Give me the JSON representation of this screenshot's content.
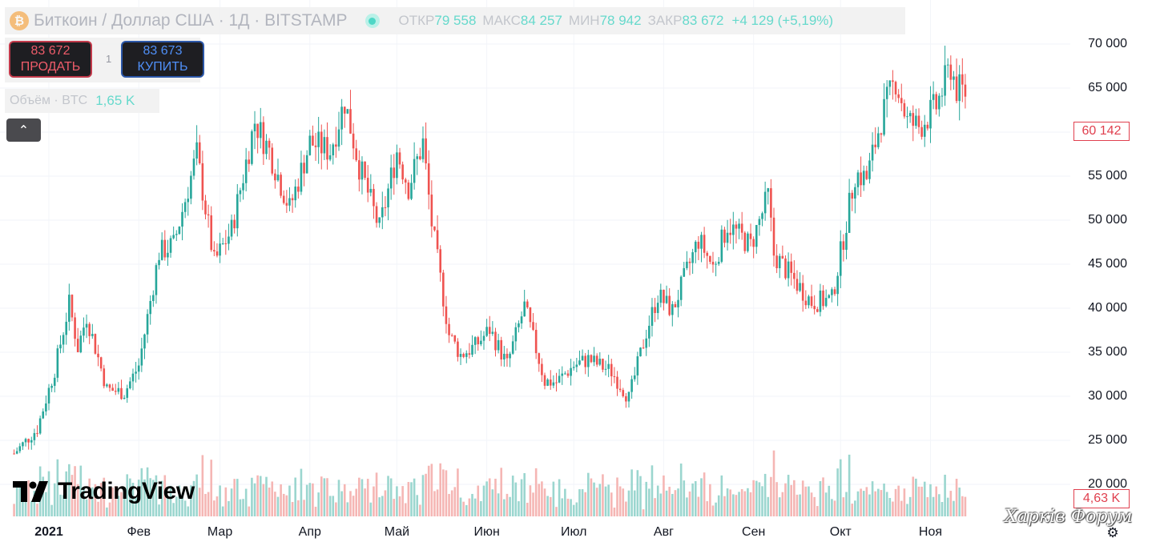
{
  "header": {
    "coin_icon": "bitcoin-icon",
    "coin_glyph": "₿",
    "symbol_title": "Биткоин / Доллар США · 1Д · BITSTAMP",
    "open_key": "ОТКР",
    "open_val": "79 558",
    "high_key": "МАКС",
    "high_val": "84 257",
    "low_key": "МИН",
    "low_val": "78 942",
    "close_key": "ЗАКР",
    "close_val": "83 672",
    "change": "+4 129 (+5,19%)"
  },
  "trade": {
    "sell_price": "83 672",
    "sell_label": "ПРОДАТЬ",
    "spread": "1",
    "buy_price": "83 673",
    "buy_label": "КУПИТЬ"
  },
  "volume_legend": {
    "label": "Объём · BTC",
    "value": "1,65 K"
  },
  "collapse_icon": "chevron-up-icon",
  "collapse_glyph": "⌃",
  "price_tag": "60 142",
  "volume_tag": "4,63 K",
  "watermark": {
    "brand": "TradingView",
    "forum": "Харків Форум"
  },
  "colors": {
    "up": "#26a69a",
    "down": "#ef5350",
    "up_volume": "#9bd6cf",
    "down_volume": "#f5b6b4",
    "accent_tag": "#e0404f"
  },
  "chart_data": {
    "type": "candlestick",
    "title": "Биткоин / Доллар США · 1Д · BITSTAMP",
    "ylim": [
      20000,
      70000
    ],
    "y_ticks": [
      {
        "value": 70000,
        "label": "70 000"
      },
      {
        "value": 65000,
        "label": "65 000"
      },
      {
        "value": 60000,
        "label": "60 000"
      },
      {
        "value": 55000,
        "label": "55 000"
      },
      {
        "value": 50000,
        "label": "50 000"
      },
      {
        "value": 45000,
        "label": "45 000"
      },
      {
        "value": 40000,
        "label": "40 000"
      },
      {
        "value": 35000,
        "label": "35 000"
      },
      {
        "value": 30000,
        "label": "30 000"
      },
      {
        "value": 25000,
        "label": "25 000"
      },
      {
        "value": 20000,
        "label": "20 000"
      }
    ],
    "x_ticks": [
      {
        "date": "2021-01-01",
        "label": "2021",
        "bold": true
      },
      {
        "date": "2021-02-01",
        "label": "Фев"
      },
      {
        "date": "2021-03-01",
        "label": "Мар"
      },
      {
        "date": "2021-04-01",
        "label": "Апр"
      },
      {
        "date": "2021-05-01",
        "label": "Май"
      },
      {
        "date": "2021-06-01",
        "label": "Июн"
      },
      {
        "date": "2021-07-01",
        "label": "Июл"
      },
      {
        "date": "2021-08-01",
        "label": "Авг"
      },
      {
        "date": "2021-09-01",
        "label": "Сен"
      },
      {
        "date": "2021-10-01",
        "label": "Окт"
      },
      {
        "date": "2021-11-01",
        "label": "Ноя"
      }
    ],
    "close_path": [
      [
        "2020-12-20",
        23500
      ],
      [
        "2020-12-28",
        26300
      ],
      [
        "2021-01-03",
        33000
      ],
      [
        "2021-01-08",
        40500
      ],
      [
        "2021-01-11",
        35500
      ],
      [
        "2021-01-14",
        39100
      ],
      [
        "2021-01-21",
        30800
      ],
      [
        "2021-01-27",
        30400
      ],
      [
        "2021-02-01",
        33500
      ],
      [
        "2021-02-08",
        46300
      ],
      [
        "2021-02-13",
        47200
      ],
      [
        "2021-02-21",
        57500
      ],
      [
        "2021-02-27",
        45200
      ],
      [
        "2021-03-05",
        48900
      ],
      [
        "2021-03-13",
        61200
      ],
      [
        "2021-03-18",
        57900
      ],
      [
        "2021-03-25",
        51300
      ],
      [
        "2021-04-01",
        58800
      ],
      [
        "2021-04-08",
        57900
      ],
      [
        "2021-04-13",
        63500
      ],
      [
        "2021-04-18",
        56200
      ],
      [
        "2021-04-25",
        49000
      ],
      [
        "2021-05-01",
        57800
      ],
      [
        "2021-05-05",
        53800
      ],
      [
        "2021-05-10",
        58800
      ],
      [
        "2021-05-13",
        49600
      ],
      [
        "2021-05-19",
        37000
      ],
      [
        "2021-05-23",
        34700
      ],
      [
        "2021-05-28",
        35700
      ],
      [
        "2021-06-02",
        37600
      ],
      [
        "2021-06-08",
        33600
      ],
      [
        "2021-06-14",
        40200
      ],
      [
        "2021-06-21",
        31700
      ],
      [
        "2021-06-25",
        31600
      ],
      [
        "2021-07-01",
        33500
      ],
      [
        "2021-07-06",
        34200
      ],
      [
        "2021-07-14",
        32800
      ],
      [
        "2021-07-20",
        29800
      ],
      [
        "2021-07-26",
        37300
      ],
      [
        "2021-07-30",
        41500
      ],
      [
        "2021-08-04",
        39700
      ],
      [
        "2021-08-13",
        47800
      ],
      [
        "2021-08-18",
        44700
      ],
      [
        "2021-08-23",
        49500
      ],
      [
        "2021-08-31",
        47100
      ],
      [
        "2021-09-06",
        52700
      ],
      [
        "2021-09-08",
        46100
      ],
      [
        "2021-09-21",
        40700
      ],
      [
        "2021-09-28",
        41000
      ],
      [
        "2021-10-02",
        48000
      ],
      [
        "2021-10-06",
        55300
      ],
      [
        "2021-10-10",
        54700
      ],
      [
        "2021-10-15",
        61500
      ],
      [
        "2021-10-20",
        66000
      ],
      [
        "2021-10-24",
        61200
      ],
      [
        "2021-10-28",
        60600
      ],
      [
        "2021-11-03",
        62900
      ],
      [
        "2021-11-08",
        67500
      ],
      [
        "2021-11-10",
        64900
      ],
      [
        "2021-11-13",
        64500
      ]
    ],
    "volume_scale_note": "Объём · BTC"
  }
}
